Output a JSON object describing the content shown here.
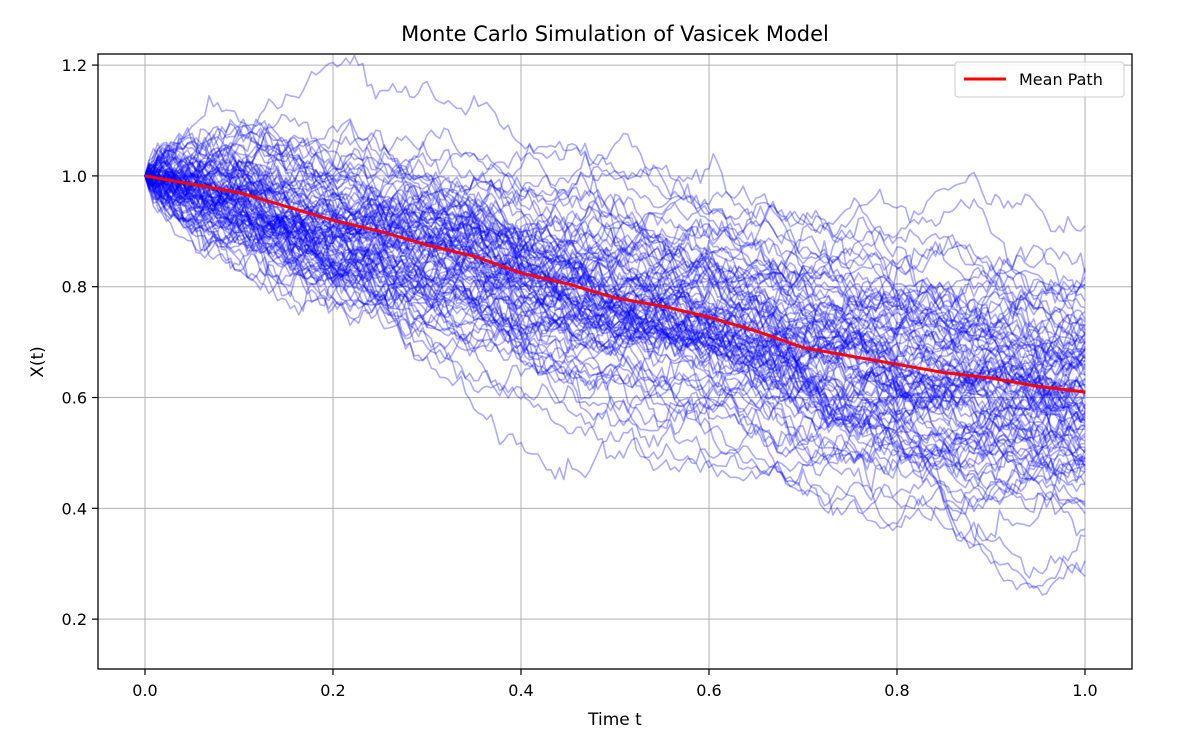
{
  "chart_data": {
    "type": "line",
    "title": "Monte Carlo Simulation of Vasicek Model",
    "xlabel": "Time t",
    "ylabel": "X(t)",
    "xlim": [
      -0.05,
      1.05
    ],
    "ylim": [
      0.11,
      1.22
    ],
    "xticks": [
      0.0,
      0.2,
      0.4,
      0.6,
      0.8,
      1.0
    ],
    "xtick_labels": [
      "0.0",
      "0.2",
      "0.4",
      "0.6",
      "0.8",
      "1.0"
    ],
    "yticks": [
      0.2,
      0.4,
      0.6,
      0.8,
      1.0,
      1.2
    ],
    "ytick_labels": [
      "0.2",
      "0.4",
      "0.6",
      "0.8",
      "1.0",
      "1.2"
    ],
    "grid": true,
    "legend": {
      "position": "top-right",
      "entries": [
        "Mean Path"
      ]
    },
    "simulation": {
      "n_paths": 100,
      "x0": 1.0,
      "color": "#0000ff",
      "opacity": 0.33
    },
    "series": [
      {
        "name": "Mean Path",
        "color": "#ff0000",
        "x": [
          0.0,
          0.05,
          0.1,
          0.15,
          0.2,
          0.25,
          0.3,
          0.35,
          0.4,
          0.45,
          0.5,
          0.55,
          0.6,
          0.65,
          0.7,
          0.75,
          0.8,
          0.85,
          0.9,
          0.95,
          1.0
        ],
        "y": [
          1.0,
          0.985,
          0.97,
          0.945,
          0.92,
          0.9,
          0.875,
          0.855,
          0.825,
          0.805,
          0.78,
          0.765,
          0.745,
          0.72,
          0.69,
          0.675,
          0.66,
          0.645,
          0.635,
          0.62,
          0.61
        ]
      }
    ]
  }
}
